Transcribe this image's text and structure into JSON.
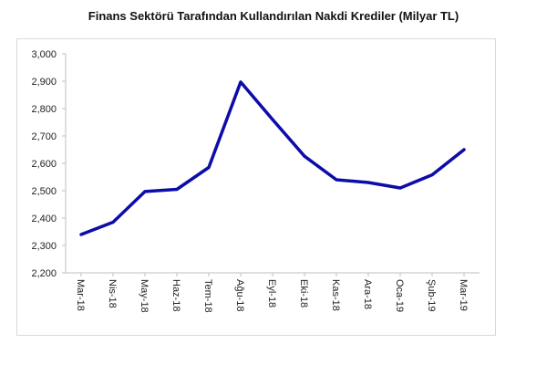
{
  "chart_data": {
    "type": "line",
    "title": "Finans Sektörü Tarafından Kullandırılan Nakdi Krediler (Milyar TL)",
    "xlabel": "",
    "ylabel": "",
    "categories": [
      "Mar-18",
      "Nis-18",
      "May-18",
      "Haz-18",
      "Tem-18",
      "Ağu-18",
      "Eyl-18",
      "Eki-18",
      "Kas-18",
      "Ara-18",
      "Oca-19",
      "Şub-19",
      "Mar-19"
    ],
    "series": [
      {
        "values": [
          2340,
          2385,
          2497,
          2505,
          2585,
          2897,
          2760,
          2626,
          2540,
          2530,
          2510,
          2558,
          2650
        ]
      }
    ],
    "ylim": [
      2200,
      3000
    ],
    "yticks": [
      "2,200",
      "2,300",
      "2,400",
      "2,500",
      "2,600",
      "2,700",
      "2,800",
      "2,900",
      "3,000"
    ],
    "grid": false,
    "legend": "none",
    "line_color": "#0c0ca8",
    "axis_color": "#bfbfbf"
  }
}
